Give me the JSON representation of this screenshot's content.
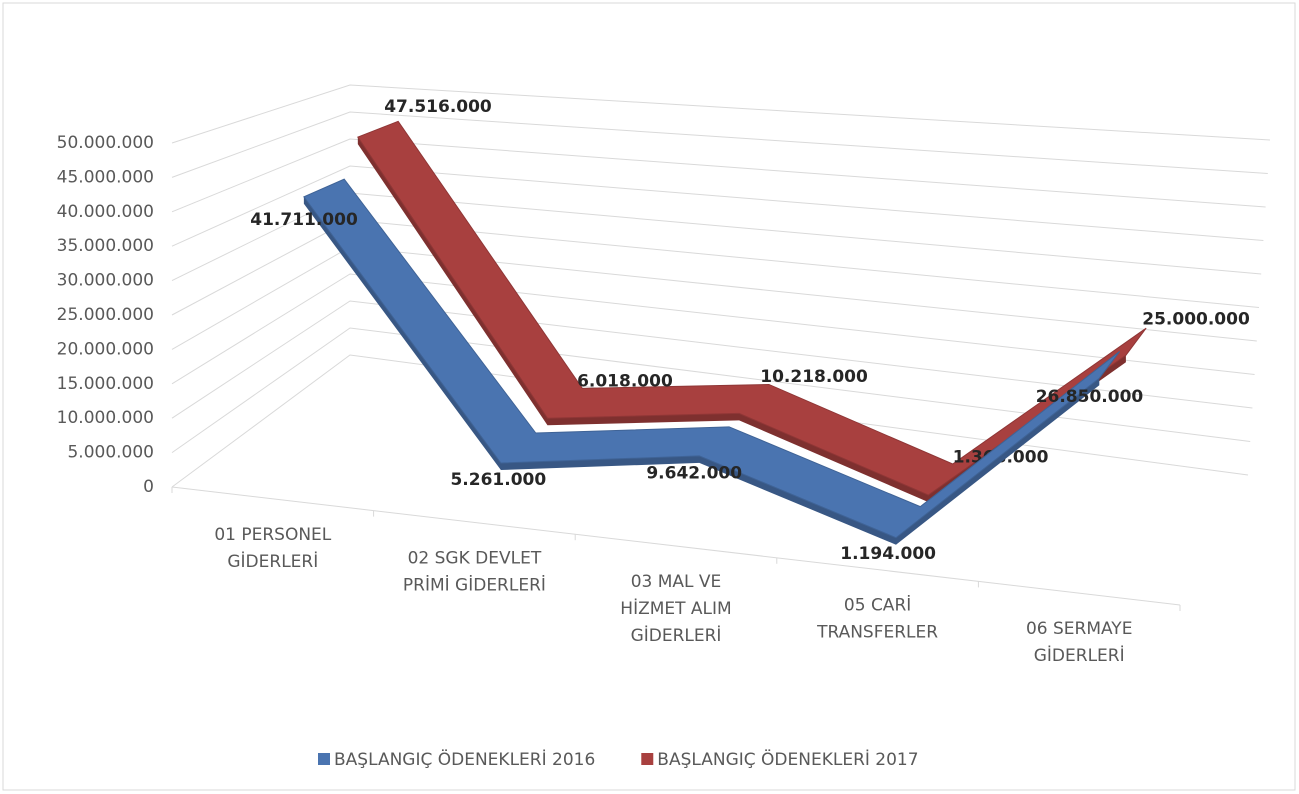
{
  "chart_data": {
    "type": "line3d",
    "categories": [
      "01 PERSONEL\nGİDERLERİ",
      "02 SGK DEVLET\nPRİMİ GİDERLERİ",
      "03 MAL VE\nHİZMET ALIM\nGİDERLERİ",
      "05 CARİ\nTRANSFERLER",
      "06 SERMAYE\nGİDERLERİ"
    ],
    "series": [
      {
        "name": "BAŞLANGIÇ ÖDENEKLERİ 2016",
        "color": "#4a74b0",
        "values": [
          41711000,
          5261000,
          9642000,
          1194000,
          26850000
        ],
        "value_labels": [
          "41.711.000",
          "5.261.000",
          "9.642.000",
          "1.194.000",
          "26.850.000"
        ]
      },
      {
        "name": "BAŞLANGIÇ ÖDENEKLERİ 2017",
        "color": "#a8403f",
        "values": [
          47516000,
          6018000,
          10218000,
          1368000,
          25000000
        ],
        "value_labels": [
          "47.516.000",
          "6.018.000",
          "10.218.000",
          "1.368.000",
          "25.000.000"
        ]
      }
    ],
    "ylim": [
      0,
      50000000
    ],
    "yticks": [
      0,
      {
        "value": 5000000,
        "label": "5.000.000"
      },
      {
        "value": 10000000,
        "label": "10.000.000"
      },
      {
        "value": 15000000,
        "label": "15.000.000"
      },
      {
        "value": 20000000,
        "label": "20.000.000"
      },
      {
        "value": 25000000,
        "label": "25.000.000"
      },
      {
        "value": 30000000,
        "label": "30.000.000"
      },
      {
        "value": 35000000,
        "label": "35.000.000"
      },
      {
        "value": 40000000,
        "label": "40.000.000"
      },
      {
        "value": 45000000,
        "label": "45.000.000"
      },
      {
        "value": 50000000,
        "label": "50.000.000"
      }
    ],
    "grid": true,
    "legend": "bottom"
  }
}
